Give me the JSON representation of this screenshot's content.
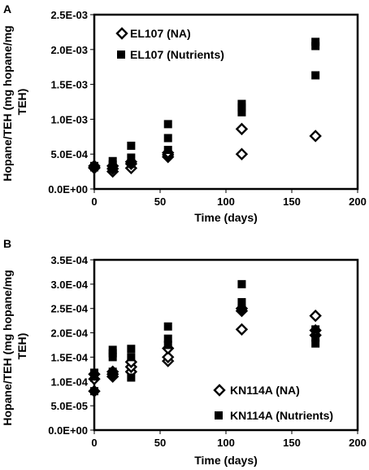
{
  "chart_data": [
    {
      "type": "scatter",
      "panel": "A",
      "xlabel": "Time (days)",
      "ylabel": "Hopane/TEH (mg hopane/mg TEH)",
      "xlim": [
        0,
        200
      ],
      "ylim": [
        0,
        0.0025
      ],
      "x_ticks": [
        "0",
        "50",
        "100",
        "150",
        "200"
      ],
      "y_ticks": [
        "0.0E+00",
        "5.0E-04",
        "1.0E-03",
        "1.5E-03",
        "2.0E-03",
        "2.5E-03"
      ],
      "grid": false,
      "legend_position": "top-left",
      "series": [
        {
          "name": "EL107 (NA)",
          "marker": "open-diamond",
          "points": [
            [
              0,
              0.00031
            ],
            [
              0,
              0.00033
            ],
            [
              0,
              0.0003
            ],
            [
              14,
              0.00025
            ],
            [
              14,
              0.00029
            ],
            [
              14,
              0.00033
            ],
            [
              28,
              0.0003
            ],
            [
              28,
              0.00036
            ],
            [
              28,
              0.00039
            ],
            [
              56,
              0.00046
            ],
            [
              56,
              0.00049
            ],
            [
              56,
              0.00052
            ],
            [
              112,
              0.0005
            ],
            [
              112,
              0.00086
            ],
            [
              168,
              0.00076
            ]
          ]
        },
        {
          "name": "EL107 (Nutrients)",
          "marker": "filled-square",
          "points": [
            [
              0,
              0.00031
            ],
            [
              0,
              0.00033
            ],
            [
              0,
              0.00032
            ],
            [
              14,
              0.00029
            ],
            [
              14,
              0.00035
            ],
            [
              14,
              0.0004
            ],
            [
              28,
              0.00036
            ],
            [
              28,
              0.00045
            ],
            [
              28,
              0.00062
            ],
            [
              56,
              0.00056
            ],
            [
              56,
              0.00073
            ],
            [
              56,
              0.00093
            ],
            [
              112,
              0.0011
            ],
            [
              112,
              0.00117
            ],
            [
              112,
              0.00122
            ],
            [
              168,
              0.00163
            ],
            [
              168,
              0.00205
            ],
            [
              168,
              0.00211
            ]
          ]
        }
      ]
    },
    {
      "type": "scatter",
      "panel": "B",
      "xlabel": "Time (days)",
      "ylabel": "Hopane/TEH (mg hopane/mg TEH)",
      "xlim": [
        0,
        200
      ],
      "ylim": [
        0,
        0.00035
      ],
      "x_ticks": [
        "0",
        "50",
        "100",
        "150",
        "200"
      ],
      "y_ticks": [
        "0.0E+00",
        "5.0E-05",
        "1.0E-04",
        "1.5E-04",
        "2.0E-04",
        "2.5E-04",
        "3.0E-04",
        "3.5E-04"
      ],
      "grid": false,
      "legend_position": "bottom-right",
      "series": [
        {
          "name": "KN114A (NA)",
          "marker": "open-diamond",
          "points": [
            [
              0,
              8e-05
            ],
            [
              0,
              0.000105
            ],
            [
              0,
              0.000115
            ],
            [
              14,
              0.00011
            ],
            [
              14,
              0.000115
            ],
            [
              14,
              0.00012
            ],
            [
              28,
              0.00012
            ],
            [
              28,
              0.00013
            ],
            [
              28,
              0.00014
            ],
            [
              56,
              0.000142
            ],
            [
              56,
              0.00015
            ],
            [
              56,
              0.000168
            ],
            [
              112,
              0.000207
            ],
            [
              112,
              0.000245
            ],
            [
              112,
              0.00025
            ],
            [
              168,
              0.000195
            ],
            [
              168,
              0.000205
            ],
            [
              168,
              0.000235
            ]
          ]
        },
        {
          "name": "KN114A (Nutrients)",
          "marker": "filled-square",
          "points": [
            [
              0,
              8e-05
            ],
            [
              0,
              0.00011
            ],
            [
              0,
              0.000118
            ],
            [
              14,
              0.00012
            ],
            [
              14,
              0.00015
            ],
            [
              14,
              0.000158
            ],
            [
              14,
              0.000165
            ],
            [
              28,
              0.000108
            ],
            [
              28,
              0.00015
            ],
            [
              28,
              0.000167
            ],
            [
              56,
              0.000175
            ],
            [
              56,
              0.000188
            ],
            [
              56,
              0.000213
            ],
            [
              112,
              0.00025
            ],
            [
              112,
              0.000263
            ],
            [
              112,
              0.0003
            ],
            [
              168,
              0.000178
            ],
            [
              168,
              0.00019
            ],
            [
              168,
              0.000207
            ]
          ]
        }
      ]
    }
  ]
}
